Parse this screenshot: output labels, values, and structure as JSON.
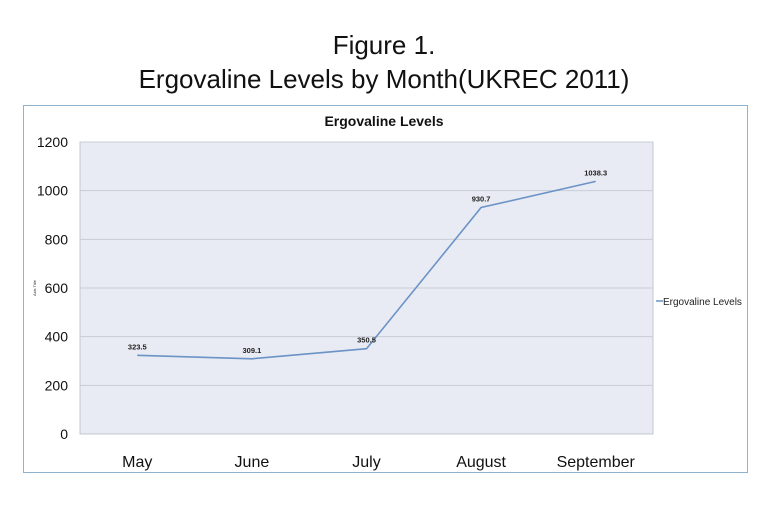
{
  "figure": {
    "title_line1": "Figure 1.",
    "title_line2": "Ergovaline Levels by Month(UKREC 2011)"
  },
  "chart_data": {
    "type": "line",
    "title": "Ergovaline Levels",
    "xlabel": "",
    "ylabel": "Axis Title",
    "categories": [
      "May",
      "June",
      "July",
      "August",
      "September"
    ],
    "series": [
      {
        "name": "Ergovaline Levels",
        "values": [
          323.5,
          309.1,
          350.5,
          930.7,
          1038.3
        ],
        "color": "#6b93c6"
      }
    ],
    "data_labels": [
      "323.5",
      "309.1",
      "350.5",
      "930.7",
      "1038.3"
    ],
    "ylim": [
      0,
      1200
    ],
    "yticks": [
      0,
      200,
      400,
      600,
      800,
      1000,
      1200
    ],
    "grid": true,
    "legend": "right",
    "plot_background": "#e8ebf3",
    "gridline_color": "#c8ccd6"
  }
}
